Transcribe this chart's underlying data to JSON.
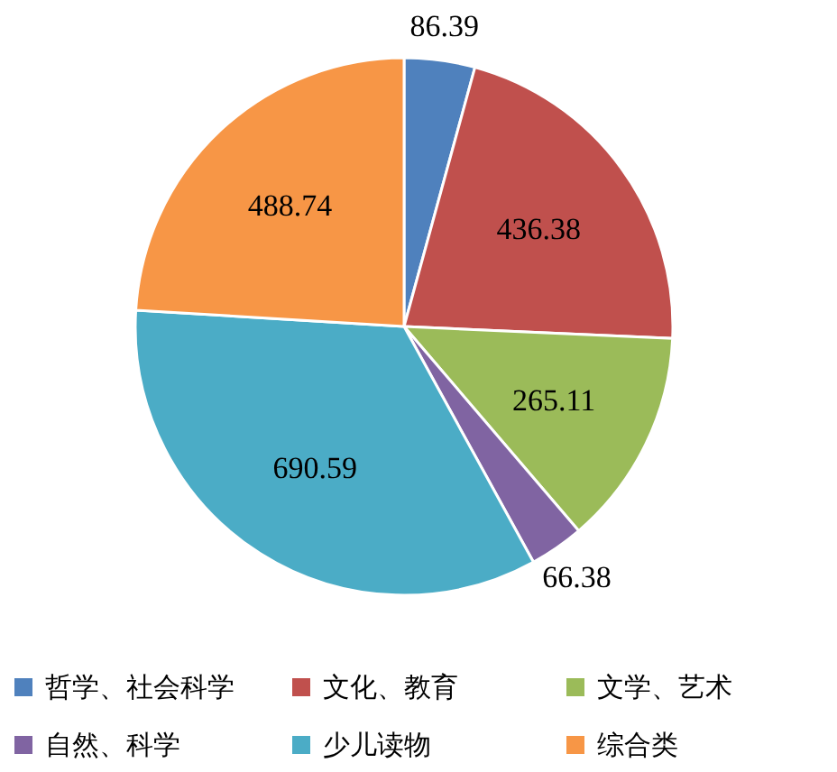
{
  "chart_data": {
    "type": "pie",
    "categories": [
      "哲学、社会科学",
      "文化、教育",
      "文学、艺术",
      "自然、科学",
      "少儿读物",
      "综合类"
    ],
    "values": [
      86.39,
      436.38,
      265.11,
      66.38,
      690.59,
      488.74
    ],
    "colors": [
      "#4f81bd",
      "#c0504d",
      "#9bbb59",
      "#8064a2",
      "#4bacc6",
      "#f79646"
    ],
    "data_labels": true,
    "legend": "bottom"
  }
}
